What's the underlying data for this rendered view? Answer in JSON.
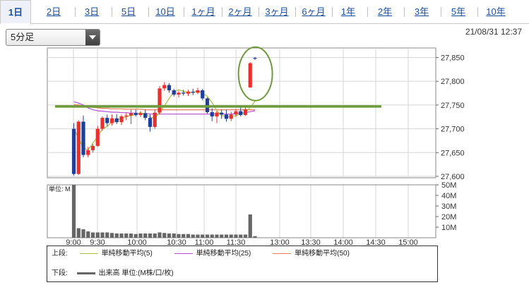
{
  "tabs": [
    {
      "label": "1日",
      "active": true
    },
    {
      "label": "2日"
    },
    {
      "label": "3日"
    },
    {
      "label": "5日"
    },
    {
      "label": "10日"
    },
    {
      "label": "1ヶ月"
    },
    {
      "label": "2ヶ月"
    },
    {
      "label": "3ヶ月"
    },
    {
      "label": "6ヶ月"
    },
    {
      "label": "1年"
    },
    {
      "label": "2年"
    },
    {
      "label": "3年"
    },
    {
      "label": "5年"
    },
    {
      "label": "10年"
    }
  ],
  "interval_select": {
    "value": "5分足"
  },
  "datetime": "21/08/31 12:37",
  "chart_data": {
    "type": "candlestick",
    "x_ticks": [
      "9:00",
      "9:30",
      "10:00",
      "10:30",
      "11:00",
      "11:30",
      "13:00",
      "13:30",
      "14:00",
      "14:30",
      "15:00"
    ],
    "price_axis": {
      "ticks": [
        "27,850",
        "27,800",
        "27,750",
        "27,700",
        "27,650",
        "27,600"
      ],
      "range": [
        27597,
        27870
      ]
    },
    "volume_axis": {
      "unit_label": "単位: M",
      "ticks": [
        "50M",
        "40M",
        "30M",
        "20M",
        "10M"
      ],
      "range": [
        0,
        50
      ]
    },
    "candles": [
      {
        "o": 27700,
        "h": 27712,
        "l": 27602,
        "c": 27605
      },
      {
        "o": 27605,
        "h": 27718,
        "l": 27603,
        "c": 27715
      },
      {
        "o": 27715,
        "h": 27728,
        "l": 27640,
        "c": 27645
      },
      {
        "o": 27645,
        "h": 27662,
        "l": 27640,
        "c": 27655
      },
      {
        "o": 27655,
        "h": 27668,
        "l": 27650,
        "c": 27664
      },
      {
        "o": 27664,
        "h": 27706,
        "l": 27662,
        "c": 27700
      },
      {
        "o": 27700,
        "h": 27726,
        "l": 27696,
        "c": 27723
      },
      {
        "o": 27723,
        "h": 27730,
        "l": 27706,
        "c": 27712
      },
      {
        "o": 27712,
        "h": 27730,
        "l": 27707,
        "c": 27722
      },
      {
        "o": 27722,
        "h": 27731,
        "l": 27710,
        "c": 27714
      },
      {
        "o": 27714,
        "h": 27730,
        "l": 27708,
        "c": 27726
      },
      {
        "o": 27726,
        "h": 27733,
        "l": 27718,
        "c": 27728
      },
      {
        "o": 27728,
        "h": 27740,
        "l": 27710,
        "c": 27733
      },
      {
        "o": 27733,
        "h": 27740,
        "l": 27726,
        "c": 27729
      },
      {
        "o": 27729,
        "h": 27737,
        "l": 27725,
        "c": 27733
      },
      {
        "o": 27733,
        "h": 27740,
        "l": 27718,
        "c": 27723
      },
      {
        "o": 27723,
        "h": 27730,
        "l": 27694,
        "c": 27704
      },
      {
        "o": 27704,
        "h": 27740,
        "l": 27700,
        "c": 27734
      },
      {
        "o": 27734,
        "h": 27790,
        "l": 27730,
        "c": 27785
      },
      {
        "o": 27785,
        "h": 27798,
        "l": 27780,
        "c": 27792
      },
      {
        "o": 27792,
        "h": 27796,
        "l": 27776,
        "c": 27781
      },
      {
        "o": 27781,
        "h": 27784,
        "l": 27768,
        "c": 27772
      },
      {
        "o": 27772,
        "h": 27780,
        "l": 27766,
        "c": 27776
      },
      {
        "o": 27776,
        "h": 27782,
        "l": 27770,
        "c": 27774
      },
      {
        "o": 27774,
        "h": 27782,
        "l": 27769,
        "c": 27778
      },
      {
        "o": 27778,
        "h": 27784,
        "l": 27771,
        "c": 27776
      },
      {
        "o": 27776,
        "h": 27786,
        "l": 27773,
        "c": 27781
      },
      {
        "o": 27781,
        "h": 27784,
        "l": 27760,
        "c": 27764
      },
      {
        "o": 27764,
        "h": 27766,
        "l": 27732,
        "c": 27735
      },
      {
        "o": 27735,
        "h": 27743,
        "l": 27716,
        "c": 27726
      },
      {
        "o": 27726,
        "h": 27737,
        "l": 27712,
        "c": 27734
      },
      {
        "o": 27734,
        "h": 27740,
        "l": 27721,
        "c": 27730
      },
      {
        "o": 27730,
        "h": 27740,
        "l": 27715,
        "c": 27721
      },
      {
        "o": 27721,
        "h": 27736,
        "l": 27716,
        "c": 27730
      },
      {
        "o": 27730,
        "h": 27742,
        "l": 27725,
        "c": 27737
      },
      {
        "o": 27737,
        "h": 27746,
        "l": 27726,
        "c": 27729
      },
      {
        "o": 27729,
        "h": 27746,
        "l": 27727,
        "c": 27741
      },
      {
        "o": 27787,
        "h": 27840,
        "l": 27786,
        "c": 27838
      },
      {
        "o": 27849,
        "h": 27851,
        "l": 27845,
        "c": 27848
      }
    ],
    "volume": [
      50,
      9,
      8,
      6,
      5,
      5,
      5,
      5,
      4.5,
      4,
      4,
      4,
      4,
      3.5,
      4,
      4,
      4,
      4,
      5,
      4.5,
      4,
      4,
      3.5,
      3.5,
      3.5,
      3,
      3,
      3,
      3,
      3,
      3,
      3,
      3,
      3,
      3,
      3,
      3,
      22,
      1.5
    ],
    "sma5": [
      27700,
      27680,
      27660,
      27655,
      27670,
      27683,
      27700,
      27705,
      27715,
      27718,
      27722,
      27725,
      27728,
      27730,
      27734,
      27730,
      27725,
      27722,
      27735,
      27748,
      27764,
      27778,
      27782,
      27779,
      27776,
      27777,
      27778,
      27776,
      27768,
      27755,
      27738,
      27728,
      27726,
      27725,
      27728,
      27731,
      27734,
      27745,
      27758
    ],
    "sma25": [
      27757,
      27754,
      27750,
      27744,
      27740,
      27738,
      27737,
      27736,
      27735,
      27735,
      27734,
      27734,
      27733,
      27733,
      27732,
      27732,
      27731,
      27731,
      27731,
      27731,
      27731,
      27731,
      27731,
      27731,
      27731,
      27731,
      27731,
      27731,
      27731,
      27731,
      27731,
      27731,
      27731,
      27731,
      27732,
      27733,
      27734,
      27736,
      27738
    ],
    "sma50": [
      27751,
      27750,
      27748,
      27746,
      27745,
      27744,
      27743,
      27743,
      27742,
      27742,
      27742,
      27741,
      27741,
      27741,
      27741,
      27740,
      27740,
      27740,
      27740,
      27740,
      27740,
      27740,
      27740,
      27740,
      27740,
      27740,
      27740,
      27740,
      27740,
      27740,
      27740,
      27740,
      27740,
      27740,
      27740,
      27740,
      27740,
      27740,
      27740
    ],
    "reference_line": 27747,
    "colors": {
      "up": "#e8302f",
      "down": "#1f3f9a",
      "sma5": "#a4c23a",
      "sma25": "#b44fd3",
      "sma50": "#e97c58",
      "reference_line": "#6d9b3a",
      "highlight_circle": "#6d9b3a",
      "volume": "#666666"
    },
    "legend": {
      "upper_label": "上段:",
      "lower_label": "下段:",
      "sma5_label": "単純移動平均(5)",
      "sma25_label": "単純移動平均(25)",
      "sma50_label": "単純移動平均(50)",
      "volume_label": "出来高 単位:(M株/口/枚)"
    }
  }
}
